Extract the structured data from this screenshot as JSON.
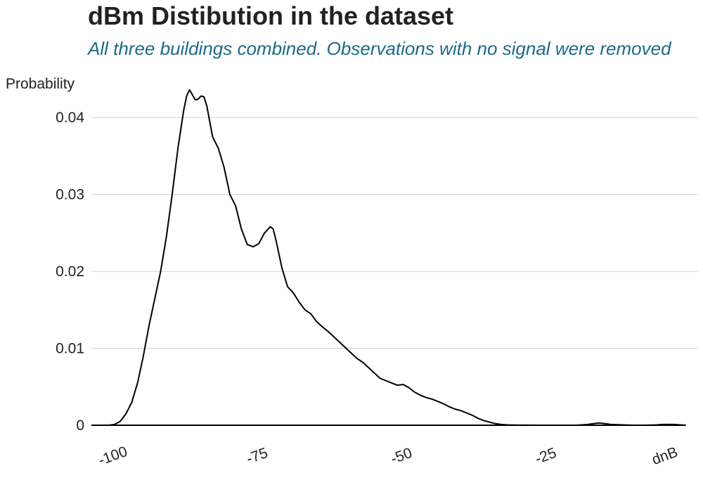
{
  "chart_data": {
    "type": "line",
    "title": "dBm Distibution in the dataset",
    "subtitle": "All three buildings combined. Observations with no signal were removed",
    "xlabel": "dnB",
    "ylabel": "Probability",
    "xlim": [
      -104,
      1
    ],
    "ylim": [
      0,
      0.0445
    ],
    "x_ticks": [
      -100,
      -75,
      -50,
      -25
    ],
    "x_tick_labels": [
      "-100",
      "-75",
      "-50",
      "-25"
    ],
    "y_ticks": [
      0,
      0.01,
      0.02,
      0.03,
      0.04
    ],
    "y_tick_labels": [
      "0",
      "0.01",
      "0.02",
      "0.03",
      "0.04"
    ],
    "grid": "horizontal",
    "series": [
      {
        "color": "#000000",
        "x": [
          -104,
          -101,
          -100,
          -99,
          -98,
          -97,
          -96,
          -95,
          -94,
          -93,
          -92,
          -91,
          -90,
          -89,
          -88,
          -87.5,
          -87,
          -86,
          -85.5,
          -85,
          -84.5,
          -84,
          -83,
          -82,
          -81,
          -80,
          -79,
          -78,
          -77,
          -76,
          -75,
          -74,
          -73,
          -72.5,
          -72,
          -71,
          -70,
          -69,
          -68,
          -67,
          -66,
          -65,
          -64,
          -63,
          -62,
          -61,
          -60,
          -59,
          -58,
          -57,
          -56,
          -55,
          -54,
          -53,
          -52,
          -51,
          -50,
          -49,
          -48,
          -47,
          -46,
          -45,
          -44,
          -43,
          -42,
          -41,
          -40,
          -39,
          -38,
          -37,
          -36,
          -35,
          -34,
          -33,
          -32,
          -31,
          -30,
          -29,
          -27,
          -25,
          -23,
          -21,
          -20,
          -19,
          -18,
          -17,
          -16,
          -15,
          -14,
          -12,
          -10,
          -8,
          -6,
          -5,
          -4,
          -3,
          -2,
          -1
        ],
        "y": [
          0,
          0,
          0.0001,
          0.0005,
          0.0015,
          0.003,
          0.0055,
          0.009,
          0.013,
          0.0165,
          0.02,
          0.0245,
          0.03,
          0.036,
          0.041,
          0.0428,
          0.0436,
          0.0423,
          0.0424,
          0.0428,
          0.0427,
          0.0415,
          0.0375,
          0.036,
          0.0335,
          0.03,
          0.0285,
          0.0255,
          0.0235,
          0.0232,
          0.0236,
          0.025,
          0.0258,
          0.0255,
          0.024,
          0.0205,
          0.018,
          0.0172,
          0.016,
          0.015,
          0.0145,
          0.0135,
          0.0128,
          0.0122,
          0.0115,
          0.0108,
          0.0101,
          0.0094,
          0.0087,
          0.0082,
          0.0075,
          0.0068,
          0.0061,
          0.0058,
          0.0055,
          0.0052,
          0.0053,
          0.0049,
          0.0043,
          0.0039,
          0.0036,
          0.0034,
          0.0031,
          0.0028,
          0.0024,
          0.0021,
          0.0019,
          0.0016,
          0.0013,
          0.0009,
          0.0006,
          0.0004,
          0.0002,
          0.0001,
          5e-05,
          3e-05,
          1e-05,
          5e-06,
          0,
          0,
          0,
          0,
          0,
          5e-05,
          0.0001,
          0.0002,
          0.0003,
          0.0002,
          0.0001,
          5e-05,
          0,
          0,
          5e-05,
          0.0001,
          0.0001,
          0.0001,
          5e-05,
          0
        ]
      }
    ]
  }
}
